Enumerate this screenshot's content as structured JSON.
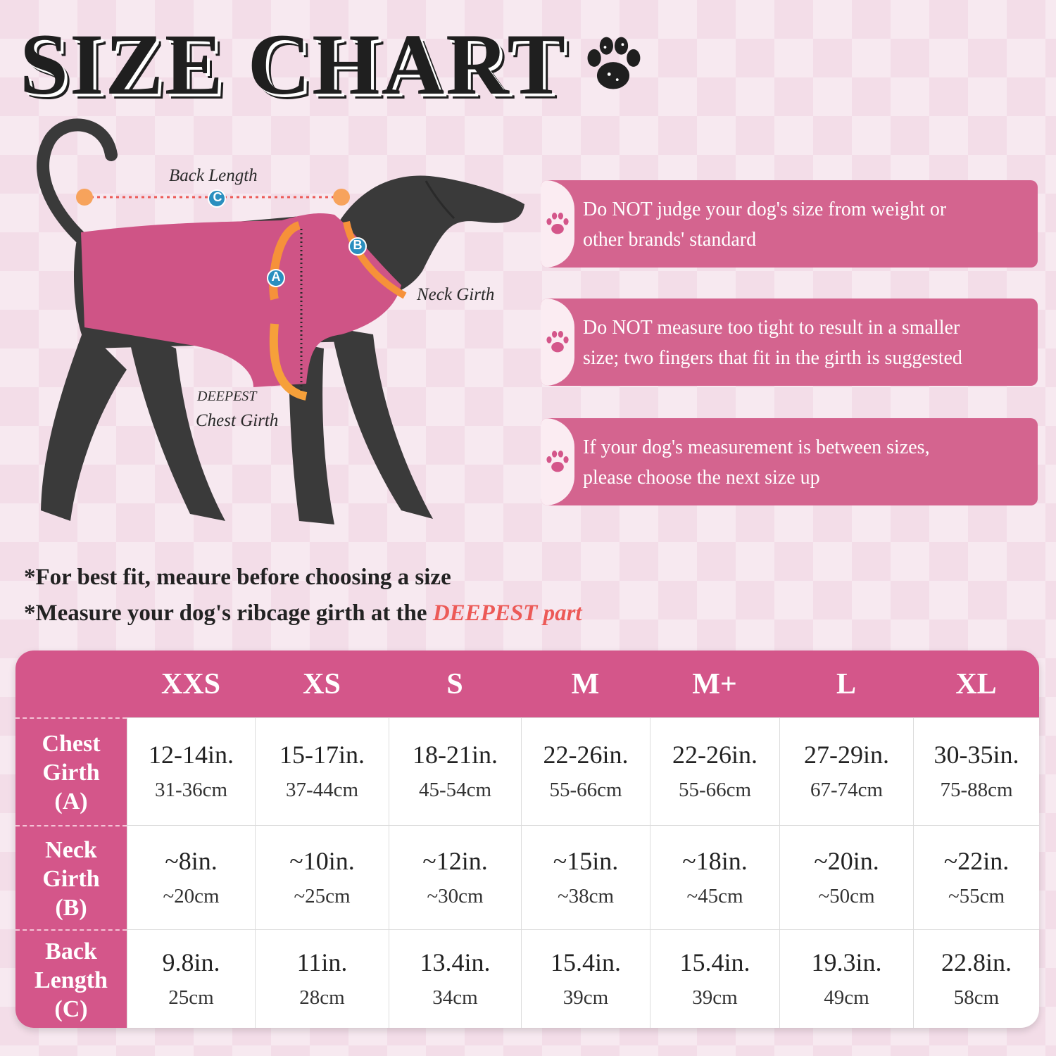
{
  "title": "SIZE CHART",
  "diagram": {
    "back_length_label": "Back Length",
    "neck_girth_label": "Neck Girth",
    "deepest_label": "DEEPEST",
    "chest_girth_label": "Chest Girth",
    "markers": {
      "a": "A",
      "b": "B",
      "c": "C"
    }
  },
  "tips": [
    {
      "line1": "Do NOT judge your dog's size from weight or",
      "line2": "other brands' standard"
    },
    {
      "line1": "Do NOT measure too tight to result in a smaller",
      "line2": "size; two fingers that fit in the girth is suggested"
    },
    {
      "line1": "If your dog's measurement is between sizes,",
      "line2": "please choose the next size up"
    }
  ],
  "notes": {
    "line1": "*For best fit, meaure before choosing a size",
    "line2_prefix": "*Measure your dog's ribcage girth at the ",
    "line2_highlight": "DEEPEST part"
  },
  "table": {
    "sizes": [
      "XXS",
      "XS",
      "S",
      "M",
      "M+",
      "L",
      "XL"
    ],
    "rows": [
      {
        "label_lines": [
          "Chest",
          "Girth",
          "(A)"
        ],
        "cells": [
          {
            "in": "12-14in.",
            "cm": "31-36cm"
          },
          {
            "in": "15-17in.",
            "cm": "37-44cm"
          },
          {
            "in": "18-21in.",
            "cm": "45-54cm"
          },
          {
            "in": "22-26in.",
            "cm": "55-66cm"
          },
          {
            "in": "22-26in.",
            "cm": "55-66cm"
          },
          {
            "in": "27-29in.",
            "cm": "67-74cm"
          },
          {
            "in": "30-35in.",
            "cm": "75-88cm"
          }
        ]
      },
      {
        "label_lines": [
          "Neck",
          "Girth",
          "(B)"
        ],
        "cells": [
          {
            "in": "~8in.",
            "cm": "~20cm"
          },
          {
            "in": "~10in.",
            "cm": "~25cm"
          },
          {
            "in": "~12in.",
            "cm": "~30cm"
          },
          {
            "in": "~15in.",
            "cm": "~38cm"
          },
          {
            "in": "~18in.",
            "cm": "~45cm"
          },
          {
            "in": "~20in.",
            "cm": "~50cm"
          },
          {
            "in": "~22in.",
            "cm": "~55cm"
          }
        ]
      },
      {
        "label_lines": [
          "Back",
          "Length",
          "(C)"
        ],
        "cells": [
          {
            "in": "9.8in.",
            "cm": "25cm"
          },
          {
            "in": "11in.",
            "cm": "28cm"
          },
          {
            "in": "13.4in.",
            "cm": "34cm"
          },
          {
            "in": "15.4in.",
            "cm": "39cm"
          },
          {
            "in": "15.4in.",
            "cm": "39cm"
          },
          {
            "in": "19.3in.",
            "cm": "49cm"
          },
          {
            "in": "22.8in.",
            "cm": "58cm"
          }
        ]
      }
    ]
  },
  "colors": {
    "accent_pink": "#d4568a",
    "tip_pink": "#d4648f",
    "highlight_red": "#ec5a57",
    "dog_body": "#3a3a3a",
    "coat": "#cf5486"
  }
}
